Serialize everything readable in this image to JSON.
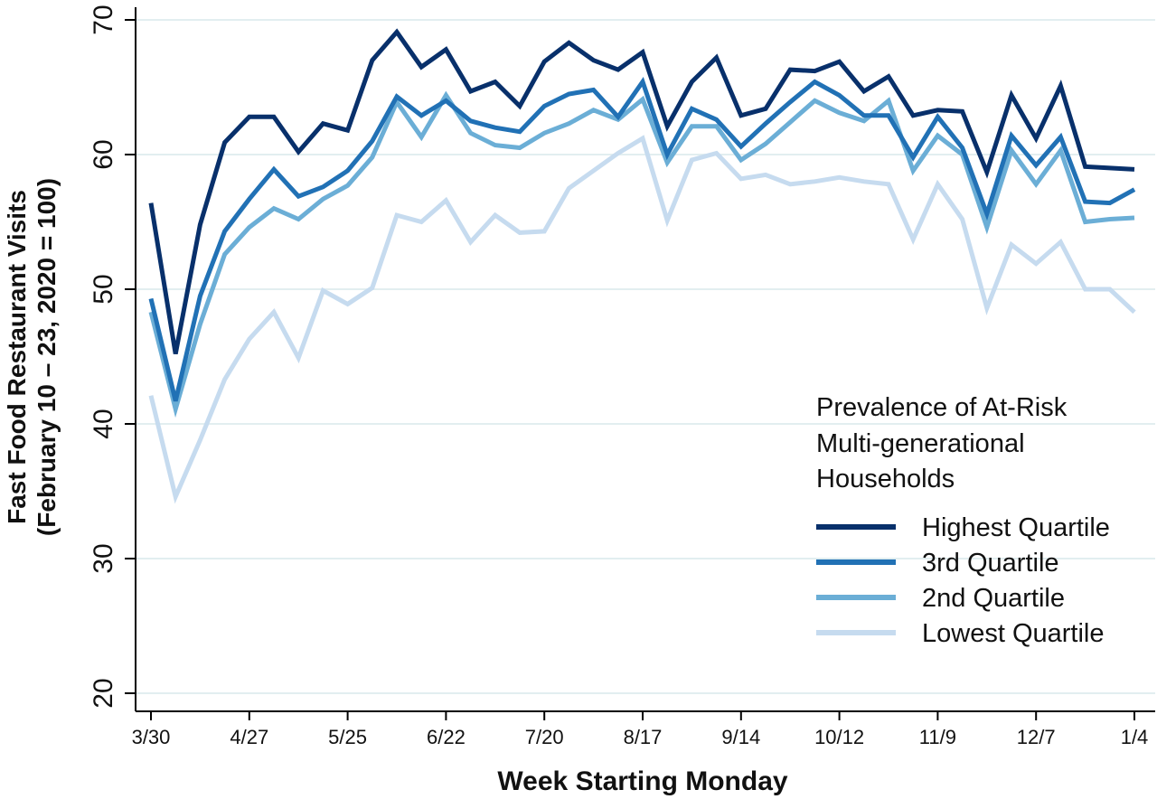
{
  "chart_data": {
    "type": "line",
    "title": "",
    "xlabel": "Week Starting Monday",
    "ylabel": [
      "Fast Food Restaurant Visits",
      "(February 10 – 23, 2020 = 100)"
    ],
    "ylim": [
      20,
      70
    ],
    "yticks": [
      20,
      30,
      40,
      50,
      60,
      70
    ],
    "grid": true,
    "legend_position": "right",
    "legend_title": [
      "Prevalence of At-Risk",
      "Multi-generational",
      "Households"
    ],
    "x_tick_labels": [
      "3/30",
      "4/27",
      "5/25",
      "6/22",
      "7/20",
      "8/17",
      "9/14",
      "10/12",
      "11/9",
      "12/7",
      "1/4"
    ],
    "x_tick_index": [
      0,
      4,
      8,
      12,
      16,
      20,
      24,
      28,
      32,
      36,
      40
    ],
    "series": [
      {
        "name": "Lowest Quartile",
        "color": "#c6dbef",
        "values": [
          42.1,
          34.6,
          38.8,
          43.3,
          46.3,
          48.3,
          44.9,
          49.9,
          48.9,
          50.1,
          55.5,
          55.0,
          56.6,
          53.5,
          55.5,
          54.2,
          54.3,
          57.5,
          58.8,
          60.1,
          61.2,
          55.1,
          59.6,
          60.1,
          58.2,
          58.5,
          57.8,
          58.0,
          58.3,
          58.0,
          57.8,
          53.7,
          57.8,
          55.2,
          48.6,
          53.3,
          51.9,
          53.5,
          50.0,
          50.0,
          48.3
        ]
      },
      {
        "name": "2nd Quartile",
        "color": "#6baed6",
        "values": [
          48.3,
          41.1,
          47.4,
          52.6,
          54.6,
          56.0,
          55.2,
          56.7,
          57.7,
          59.8,
          63.9,
          61.3,
          64.4,
          61.6,
          60.7,
          60.5,
          61.6,
          62.3,
          63.3,
          62.6,
          64.1,
          59.4,
          62.1,
          62.1,
          59.6,
          60.8,
          62.4,
          64.0,
          63.1,
          62.5,
          64.0,
          58.8,
          61.4,
          60.0,
          54.6,
          60.3,
          57.8,
          60.3,
          55.0,
          55.2,
          55.3
        ]
      },
      {
        "name": "3rd Quartile",
        "color": "#2171b5",
        "values": [
          49.3,
          41.7,
          49.5,
          54.3,
          56.7,
          58.9,
          56.9,
          57.6,
          58.8,
          61.0,
          64.3,
          62.9,
          64.0,
          62.5,
          62.0,
          61.7,
          63.6,
          64.5,
          64.8,
          62.8,
          65.4,
          60.0,
          63.4,
          62.6,
          60.6,
          62.3,
          63.9,
          65.4,
          64.4,
          62.9,
          62.9,
          59.8,
          62.8,
          60.5,
          55.6,
          61.4,
          59.2,
          61.3,
          56.5,
          56.4,
          57.4
        ]
      },
      {
        "name": "Highest Quartile",
        "color": "#08306b",
        "values": [
          56.4,
          45.2,
          54.8,
          60.9,
          62.8,
          62.8,
          60.2,
          62.3,
          61.8,
          67.0,
          69.1,
          66.5,
          67.8,
          64.7,
          65.4,
          63.6,
          66.9,
          68.3,
          67.0,
          66.3,
          67.6,
          62.1,
          65.4,
          67.2,
          62.9,
          63.4,
          66.3,
          66.2,
          66.9,
          64.7,
          65.8,
          62.9,
          63.3,
          63.2,
          58.7,
          64.4,
          61.2,
          65.1,
          59.1,
          59.0,
          58.9
        ]
      }
    ],
    "legend_order": [
      "Highest Quartile",
      "3rd Quartile",
      "2nd Quartile",
      "Lowest Quartile"
    ]
  }
}
